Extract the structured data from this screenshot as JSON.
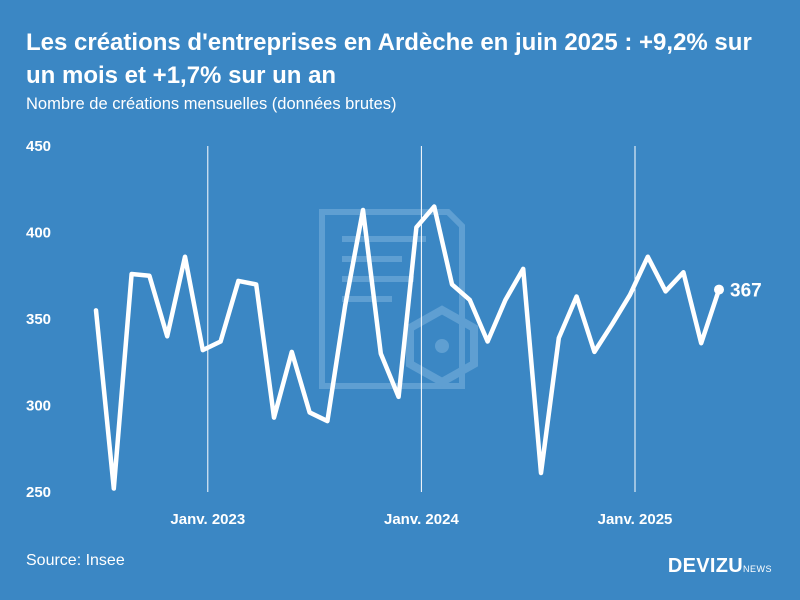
{
  "header": {
    "title": "Les créations d'entreprises en Ardèche en juin 2025 : +9,2% sur un mois et +1,7% sur un an",
    "subtitle": "Nombre de créations mensuelles (données brutes)"
  },
  "footer": {
    "source": "Source: Insee",
    "logo_main": "DEVIZU",
    "logo_sub": "NEWS"
  },
  "colors": {
    "background": "#3b87c4",
    "line": "#ffffff",
    "watermark": "#5f9fd2"
  },
  "chart_data": {
    "type": "line",
    "ylim": [
      250,
      450
    ],
    "yticks": [
      250,
      300,
      350,
      400,
      450
    ],
    "x_ticks": [
      {
        "index": 6,
        "label": "Janv. 2023"
      },
      {
        "index": 18,
        "label": "Janv. 2024"
      },
      {
        "index": 30,
        "label": "Janv. 2025"
      }
    ],
    "grid": "vertical at january ticks",
    "x": [
      "2022-07",
      "2022-08",
      "2022-09",
      "2022-10",
      "2022-11",
      "2022-12",
      "2023-01",
      "2023-02",
      "2023-03",
      "2023-04",
      "2023-05",
      "2023-06",
      "2023-07",
      "2023-08",
      "2023-09",
      "2023-10",
      "2023-11",
      "2023-12",
      "2024-01",
      "2024-02",
      "2024-03",
      "2024-04",
      "2024-05",
      "2024-06",
      "2024-07",
      "2024-08",
      "2024-09",
      "2024-10",
      "2024-11",
      "2024-12",
      "2025-01",
      "2025-02",
      "2025-03",
      "2025-04",
      "2025-05",
      "2025-06"
    ],
    "values": [
      355,
      252,
      376,
      375,
      340,
      386,
      332,
      337,
      372,
      370,
      293,
      331,
      296,
      291,
      358,
      413,
      330,
      305,
      403,
      415,
      370,
      361,
      337,
      361,
      379,
      261,
      339,
      363,
      331,
      347,
      364,
      386,
      366,
      377,
      336,
      367
    ],
    "end_label": "367"
  }
}
